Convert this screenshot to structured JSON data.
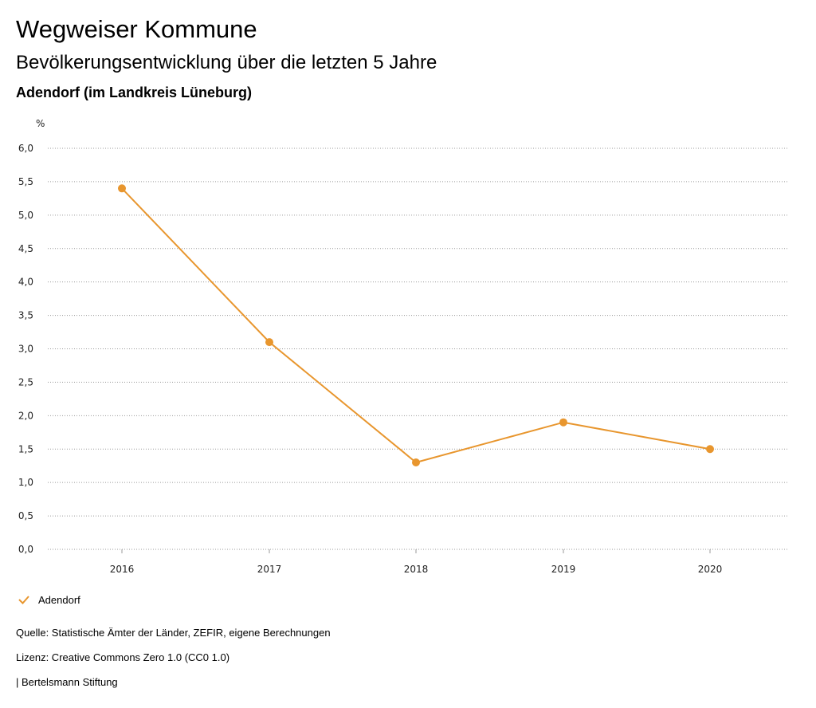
{
  "header": {
    "title": "Wegweiser Kommune",
    "subtitle": "Bevölkerungsentwicklung über die letzten 5 Jahre",
    "region": "Adendorf (im Landkreis Lüneburg)"
  },
  "chart_data": {
    "type": "line",
    "title": "Bevölkerungsentwicklung über die letzten 5 Jahre",
    "xlabel": "",
    "ylabel": "%",
    "categories": [
      "2016",
      "2017",
      "2018",
      "2019",
      "2020"
    ],
    "series": [
      {
        "name": "Adendorf",
        "values": [
          5.4,
          3.1,
          1.3,
          1.9,
          1.5
        ],
        "color": "#e8962e"
      }
    ],
    "ylim": [
      0,
      6
    ],
    "yticks": [
      0,
      0.5,
      1,
      1.5,
      2,
      2.5,
      3,
      3.5,
      4,
      4.5,
      5,
      5.5,
      6
    ],
    "ytick_labels": [
      "0,0",
      "0,5",
      "1,0",
      "1,5",
      "2,0",
      "2,5",
      "3,0",
      "3,5",
      "4,0",
      "4,5",
      "5,0",
      "5,5",
      "6,0"
    ],
    "grid": true,
    "legend": "bottom-left"
  },
  "legend": {
    "label": "Adendorf"
  },
  "footer": {
    "source": "Quelle: Statistische Ämter der Länder, ZEFIR, eigene Berechnungen",
    "license": "Lizenz: Creative Commons Zero 1.0 (CC0 1.0)",
    "publisher": "| Bertelsmann Stiftung"
  }
}
